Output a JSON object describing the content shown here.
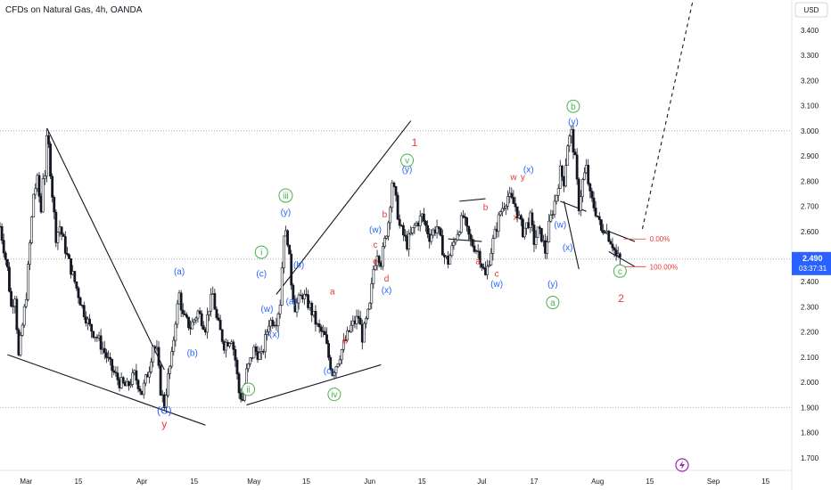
{
  "header": {
    "title": "CFDs on Natural Gas, 4h, OANDA"
  },
  "axis": {
    "currency": "USD",
    "last_price": "2.490",
    "countdown": "03:37:31"
  },
  "colors": {
    "up": "#131722",
    "down": "#131722",
    "blue": "#2962ff",
    "red": "#e53935",
    "green": "#4caf50",
    "grid": "#9e9e9e",
    "line": "#131722",
    "price_tag": "#2962ff",
    "purple": "#9c27b0"
  },
  "icons": {
    "footer": "lightning-icon"
  },
  "chart_data": {
    "type": "candlestick",
    "ylim": [
      1.65,
      3.52
    ],
    "yticks": [
      {
        "v": 3.4,
        "label": "3.400"
      },
      {
        "v": 3.3,
        "label": "3.300"
      },
      {
        "v": 3.2,
        "label": "3.200"
      },
      {
        "v": 3.1,
        "label": "3.100"
      },
      {
        "v": 3.0,
        "label": "3.000"
      },
      {
        "v": 2.9,
        "label": "2.900"
      },
      {
        "v": 2.8,
        "label": "2.800"
      },
      {
        "v": 2.7,
        "label": "2.700"
      },
      {
        "v": 2.6,
        "label": "2.600"
      },
      {
        "v": 2.4,
        "label": "2.400"
      },
      {
        "v": 2.3,
        "label": "2.300"
      },
      {
        "v": 2.2,
        "label": "2.200"
      },
      {
        "v": 2.1,
        "label": "2.100"
      },
      {
        "v": 2.0,
        "label": "2.000"
      },
      {
        "v": 1.9,
        "label": "1.900"
      },
      {
        "v": 1.8,
        "label": "1.800"
      },
      {
        "v": 1.7,
        "label": "1.700"
      }
    ],
    "xticks": [
      {
        "d": 0,
        "label": "Mar"
      },
      {
        "d": 14,
        "label": "15"
      },
      {
        "d": 31,
        "label": "Apr"
      },
      {
        "d": 45,
        "label": "15"
      },
      {
        "d": 61,
        "label": "May"
      },
      {
        "d": 75,
        "label": "15"
      },
      {
        "d": 92,
        "label": "Jun"
      },
      {
        "d": 106,
        "label": "15"
      },
      {
        "d": 122,
        "label": "Jul"
      },
      {
        "d": 136,
        "label": "17"
      },
      {
        "d": 153,
        "label": "Aug"
      },
      {
        "d": 167,
        "label": "15"
      },
      {
        "d": 184,
        "label": "Sep"
      },
      {
        "d": 198,
        "label": "15"
      }
    ],
    "xlim_days": [
      -7,
      205
    ],
    "path": [
      [
        -7,
        2.62
      ],
      [
        -5,
        2.45
      ],
      [
        -4,
        2.3
      ],
      [
        -3,
        2.35
      ],
      [
        -2,
        2.1
      ],
      [
        0,
        2.35
      ],
      [
        1,
        2.55
      ],
      [
        2,
        2.75
      ],
      [
        3,
        2.8
      ],
      [
        4,
        2.68
      ],
      [
        4.7,
        2.88
      ],
      [
        5.2,
        2.8
      ],
      [
        5.6,
        3.01
      ],
      [
        7,
        2.75
      ],
      [
        8,
        2.58
      ],
      [
        9,
        2.62
      ],
      [
        11,
        2.5
      ],
      [
        13,
        2.4
      ],
      [
        15,
        2.3
      ],
      [
        17,
        2.22
      ],
      [
        19,
        2.18
      ],
      [
        21,
        2.12
      ],
      [
        23,
        2.05
      ],
      [
        25,
        2.0
      ],
      [
        27,
        1.98
      ],
      [
        29,
        2.03
      ],
      [
        31,
        1.96
      ],
      [
        33,
        2.06
      ],
      [
        34,
        2.15
      ],
      [
        35,
        2.12
      ],
      [
        36,
        1.97
      ],
      [
        37,
        1.91
      ],
      [
        38,
        2.02
      ],
      [
        39,
        2.1
      ],
      [
        40,
        2.25
      ],
      [
        41,
        2.35
      ],
      [
        42,
        2.26
      ],
      [
        44,
        2.22
      ],
      [
        46,
        2.28
      ],
      [
        48,
        2.22
      ],
      [
        49,
        2.3
      ],
      [
        50,
        2.35
      ],
      [
        51,
        2.25
      ],
      [
        53,
        2.15
      ],
      [
        55,
        2.18
      ],
      [
        56,
        2.09
      ],
      [
        57,
        1.96
      ],
      [
        58,
        1.93
      ],
      [
        59,
        2.04
      ],
      [
        61,
        2.13
      ],
      [
        63,
        2.1
      ],
      [
        65,
        2.24
      ],
      [
        67,
        2.25
      ],
      [
        68,
        2.32
      ],
      [
        69,
        2.6
      ],
      [
        70,
        2.57
      ],
      [
        71,
        2.4
      ],
      [
        72,
        2.3
      ],
      [
        74,
        2.35
      ],
      [
        76,
        2.3
      ],
      [
        78,
        2.22
      ],
      [
        80,
        2.18
      ],
      [
        81,
        2.1
      ],
      [
        82,
        2.04
      ],
      [
        83,
        2.07
      ],
      [
        85,
        2.15
      ],
      [
        87,
        2.22
      ],
      [
        89,
        2.26
      ],
      [
        90,
        2.18
      ],
      [
        91,
        2.24
      ],
      [
        92,
        2.3
      ],
      [
        93,
        2.45
      ],
      [
        94,
        2.52
      ],
      [
        95,
        2.48
      ],
      [
        96,
        2.56
      ],
      [
        97,
        2.64
      ],
      [
        98,
        2.8
      ],
      [
        99,
        2.72
      ],
      [
        100,
        2.62
      ],
      [
        102,
        2.55
      ],
      [
        104,
        2.62
      ],
      [
        106,
        2.66
      ],
      [
        108,
        2.58
      ],
      [
        110,
        2.62
      ],
      [
        112,
        2.5
      ],
      [
        113,
        2.48
      ],
      [
        115,
        2.58
      ],
      [
        117,
        2.66
      ],
      [
        118,
        2.6
      ],
      [
        119,
        2.56
      ],
      [
        121,
        2.52
      ],
      [
        123,
        2.42
      ],
      [
        125,
        2.56
      ],
      [
        127,
        2.68
      ],
      [
        129,
        2.74
      ],
      [
        131,
        2.7
      ],
      [
        133,
        2.6
      ],
      [
        135,
        2.65
      ],
      [
        136,
        2.56
      ],
      [
        137,
        2.6
      ],
      [
        138,
        2.58
      ],
      [
        139,
        2.52
      ],
      [
        140,
        2.62
      ],
      [
        142,
        2.75
      ],
      [
        143,
        2.84
      ],
      [
        144,
        2.8
      ],
      [
        145,
        2.95
      ],
      [
        146,
        2.99
      ],
      [
        147,
        2.88
      ],
      [
        148,
        2.7
      ],
      [
        149,
        2.8
      ],
      [
        150,
        2.85
      ],
      [
        151,
        2.74
      ],
      [
        152,
        2.7
      ],
      [
        153,
        2.66
      ],
      [
        154,
        2.6
      ],
      [
        155,
        2.62
      ],
      [
        156,
        2.58
      ],
      [
        157,
        2.55
      ],
      [
        158,
        2.5
      ],
      [
        159,
        2.49
      ]
    ],
    "lines": [
      {
        "name": "wedge-upper-left",
        "color": "line",
        "pts": [
          [
            5.6,
            3.01
          ],
          [
            37,
            2.05
          ]
        ]
      },
      {
        "name": "wedge-lower-left",
        "color": "line",
        "pts": [
          [
            -5,
            2.11
          ],
          [
            48,
            1.83
          ]
        ]
      },
      {
        "name": "wedge-upper-mid",
        "color": "line",
        "pts": [
          [
            67,
            2.35
          ],
          [
            103,
            3.04
          ]
        ]
      },
      {
        "name": "wedge-lower-mid",
        "color": "line",
        "pts": [
          [
            59,
            1.91
          ],
          [
            95,
            2.07
          ]
        ]
      },
      {
        "name": "hline-top",
        "color": "grid",
        "pts": [
          [
            -7,
            3.0
          ],
          [
            205,
            3.0
          ]
        ],
        "dotted": true
      },
      {
        "name": "hline-bottom",
        "color": "grid",
        "pts": [
          [
            -7,
            1.9
          ],
          [
            205,
            1.9
          ]
        ],
        "dotted": true
      },
      {
        "name": "hline-last",
        "color": "grid",
        "pts": [
          [
            -7,
            2.49
          ],
          [
            205,
            2.49
          ]
        ],
        "dotted": true
      },
      {
        "name": "projection",
        "color": "line",
        "pts": [
          [
            165,
            2.61
          ],
          [
            179,
            3.55
          ]
        ],
        "dashed": true
      },
      {
        "name": "abc-1",
        "color": "line",
        "pts": [
          [
            113,
            2.57
          ],
          [
            122,
            2.56
          ]
        ]
      },
      {
        "name": "abc-2",
        "color": "line",
        "pts": [
          [
            123,
            2.73
          ],
          [
            116,
            2.72
          ]
        ]
      },
      {
        "name": "tri-1",
        "color": "line",
        "pts": [
          [
            143,
            2.72
          ],
          [
            150,
            2.68
          ]
        ]
      },
      {
        "name": "tri-2",
        "color": "line",
        "pts": [
          [
            144,
            2.72
          ],
          [
            148,
            2.45
          ]
        ]
      },
      {
        "name": "wedge-end-up",
        "color": "line",
        "pts": [
          [
            156,
            2.6
          ],
          [
            163,
            2.56
          ]
        ]
      },
      {
        "name": "wedge-end-dn",
        "color": "line",
        "pts": [
          [
            156,
            2.52
          ],
          [
            163,
            2.46
          ]
        ]
      }
    ],
    "fib": [
      {
        "label": "0.00%",
        "v": 2.57,
        "d0": 160,
        "d1": 166
      },
      {
        "label": "100.00%",
        "v": 2.46,
        "d0": 160,
        "d1": 166
      }
    ],
    "annotations": [
      {
        "d": 37,
        "v": 1.875,
        "text": "(C)",
        "color": "blue",
        "size": 12
      },
      {
        "d": 37,
        "v": 1.82,
        "text": "y",
        "color": "red",
        "size": 12
      },
      {
        "d": 41,
        "v": 2.43,
        "text": "(a)",
        "color": "blue"
      },
      {
        "d": 44.5,
        "v": 2.105,
        "text": "(b)",
        "color": "blue"
      },
      {
        "d": 63,
        "v": 2.42,
        "text": "(c)",
        "color": "blue"
      },
      {
        "d": 63,
        "v": 2.505,
        "text": "i",
        "color": "green",
        "circle": true
      },
      {
        "d": 59.5,
        "v": 1.96,
        "text": "ii",
        "color": "green",
        "circle": true
      },
      {
        "d": 69.5,
        "v": 2.73,
        "text": "iii",
        "color": "green",
        "circle": true
      },
      {
        "d": 69.5,
        "v": 2.665,
        "text": "(y)",
        "color": "blue"
      },
      {
        "d": 64.5,
        "v": 2.28,
        "text": "(w)",
        "color": "blue"
      },
      {
        "d": 66.5,
        "v": 2.18,
        "text": "(x)",
        "color": "blue"
      },
      {
        "d": 73,
        "v": 2.455,
        "text": "(b)",
        "color": "blue"
      },
      {
        "d": 71,
        "v": 2.31,
        "text": "(a)",
        "color": "blue"
      },
      {
        "d": 82,
        "v": 2.35,
        "text": "a",
        "color": "red"
      },
      {
        "d": 85.5,
        "v": 2.155,
        "text": "b",
        "color": "red"
      },
      {
        "d": 81,
        "v": 2.035,
        "text": "(c)",
        "color": "blue"
      },
      {
        "d": 82.5,
        "v": 1.94,
        "text": "iv",
        "color": "green",
        "circle": true
      },
      {
        "d": 93.5,
        "v": 2.595,
        "text": "(w)",
        "color": "blue"
      },
      {
        "d": 93.5,
        "v": 2.535,
        "text": "c",
        "color": "red"
      },
      {
        "d": 93.5,
        "v": 2.47,
        "text": "e",
        "color": "red"
      },
      {
        "d": 96,
        "v": 2.655,
        "text": "b",
        "color": "red"
      },
      {
        "d": 96.5,
        "v": 2.4,
        "text": "d",
        "color": "red"
      },
      {
        "d": 96.5,
        "v": 2.355,
        "text": "(x)",
        "color": "blue"
      },
      {
        "d": 102,
        "v": 2.87,
        "text": "v",
        "color": "green",
        "circle": true
      },
      {
        "d": 102,
        "v": 2.835,
        "text": "(y)",
        "color": "blue"
      },
      {
        "d": 104,
        "v": 2.94,
        "text": "1",
        "color": "red",
        "size": 12
      },
      {
        "d": 121,
        "v": 2.47,
        "text": "a",
        "color": "red"
      },
      {
        "d": 123,
        "v": 2.685,
        "text": "b",
        "color": "red"
      },
      {
        "d": 126,
        "v": 2.42,
        "text": "c",
        "color": "red"
      },
      {
        "d": 126,
        "v": 2.38,
        "text": "(w)",
        "color": "blue"
      },
      {
        "d": 131,
        "v": 2.645,
        "text": "x",
        "color": "red"
      },
      {
        "d": 130.5,
        "v": 2.805,
        "text": "w",
        "color": "red"
      },
      {
        "d": 133,
        "v": 2.805,
        "text": "y",
        "color": "red"
      },
      {
        "d": 134.5,
        "v": 2.835,
        "text": "(x)",
        "color": "blue"
      },
      {
        "d": 143,
        "v": 2.615,
        "text": "(w)",
        "color": "blue"
      },
      {
        "d": 145,
        "v": 2.525,
        "text": "(x)",
        "color": "blue"
      },
      {
        "d": 141,
        "v": 2.38,
        "text": "(y)",
        "color": "blue"
      },
      {
        "d": 141,
        "v": 2.305,
        "text": "a",
        "color": "green",
        "circle": true
      },
      {
        "d": 146.5,
        "v": 3.085,
        "text": "b",
        "color": "green",
        "circle": true
      },
      {
        "d": 146.5,
        "v": 3.025,
        "text": "(y)",
        "color": "blue"
      },
      {
        "d": 159,
        "v": 2.43,
        "text": "c",
        "color": "green",
        "circle": true
      },
      {
        "d": 159.3,
        "v": 2.32,
        "text": "2",
        "color": "red",
        "size": 12
      }
    ]
  }
}
